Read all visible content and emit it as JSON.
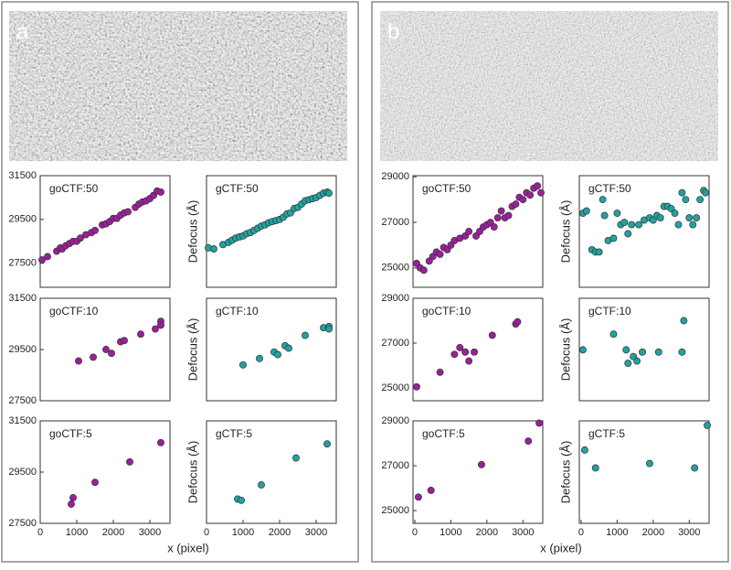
{
  "panel_labels": [
    "a",
    "b"
  ],
  "chart_data": [
    {
      "type": "scatter",
      "title": "goCTF:50",
      "color": "#9b1f9b",
      "xlim": [
        0,
        3550
      ],
      "ylim": [
        26400,
        31500
      ],
      "yticks": [
        27500,
        29500,
        31500
      ],
      "x": [
        50,
        200,
        450,
        550,
        600,
        700,
        800,
        900,
        1000,
        1100,
        1250,
        1400,
        1500,
        1700,
        1800,
        1900,
        2000,
        2100,
        2200,
        2300,
        2400,
        2600,
        2700,
        2800,
        2900,
        3000,
        3100,
        3200,
        3300
      ],
      "values": [
        27650,
        27800,
        28050,
        28200,
        28150,
        28300,
        28400,
        28500,
        28500,
        28650,
        28800,
        28900,
        29000,
        29250,
        29300,
        29400,
        29550,
        29550,
        29700,
        29800,
        29850,
        30050,
        30200,
        30300,
        30350,
        30450,
        30600,
        30800,
        30750
      ]
    },
    {
      "type": "scatter",
      "title": "gCTF:50",
      "ylabel": "Defocus (Å)",
      "color": "#1fa3a0",
      "xlim": [
        0,
        3550
      ],
      "ylim": [
        26400,
        31500
      ],
      "x": [
        50,
        200,
        450,
        600,
        700,
        800,
        900,
        1000,
        1100,
        1200,
        1300,
        1400,
        1500,
        1600,
        1700,
        1800,
        1900,
        2000,
        2100,
        2200,
        2300,
        2400,
        2500,
        2600,
        2700,
        2800,
        2900,
        3000,
        3100,
        3200,
        3300,
        3350
      ],
      "values": [
        28200,
        28150,
        28350,
        28450,
        28550,
        28650,
        28700,
        28750,
        28850,
        28900,
        29000,
        29100,
        29200,
        29250,
        29350,
        29400,
        29450,
        29500,
        29600,
        29750,
        29800,
        30000,
        30050,
        30200,
        30350,
        30400,
        30450,
        30500,
        30600,
        30700,
        30750,
        30700
      ]
    },
    {
      "type": "scatter",
      "title": "goCTF:10",
      "color": "#9b1f9b",
      "xlim": [
        0,
        3550
      ],
      "ylim": [
        27500,
        31500
      ],
      "yticks": [
        27500,
        29500,
        31500
      ],
      "x": [
        1050,
        1450,
        1800,
        1950,
        2200,
        2300,
        2750,
        3150,
        3300,
        3300
      ],
      "values": [
        29050,
        29200,
        29500,
        29350,
        29800,
        29850,
        30100,
        30300,
        30600,
        30450
      ]
    },
    {
      "type": "scatter",
      "title": "gCTF:10",
      "ylabel": "Defocus (Å)",
      "color": "#1fa3a0",
      "xlim": [
        0,
        3550
      ],
      "ylim": [
        27500,
        31500
      ],
      "x": [
        1000,
        1450,
        1850,
        1950,
        2150,
        2250,
        2700,
        3200,
        3350,
        3350
      ],
      "values": [
        28900,
        29150,
        29400,
        29300,
        29650,
        29550,
        30050,
        30350,
        30400,
        30300
      ]
    },
    {
      "type": "scatter",
      "title": "goCTF:5",
      "color": "#9b1f9b",
      "xlim": [
        0,
        3550
      ],
      "ylim": [
        27500,
        31500
      ],
      "yticks": [
        27500,
        29500,
        31500
      ],
      "xticks": [
        0,
        1000,
        2000,
        3000
      ],
      "xlabel": "x (pixel)",
      "x": [
        850,
        900,
        1500,
        2450,
        3300
      ],
      "values": [
        28250,
        28500,
        29100,
        29900,
        30650
      ]
    },
    {
      "type": "scatter",
      "title": "gCTF:5",
      "ylabel": "Defocus (Å)",
      "color": "#1fa3a0",
      "xlim": [
        0,
        3550
      ],
      "ylim": [
        27500,
        31500
      ],
      "xticks": [
        0,
        1000,
        2000,
        3000
      ],
      "x": [
        850,
        950,
        1500,
        2450,
        3300
      ],
      "values": [
        28450,
        28400,
        29000,
        30050,
        30600
      ]
    },
    {
      "type": "scatter",
      "title": "goCTF:50",
      "color": "#9b1f9b",
      "xlim": [
        -50,
        3550
      ],
      "ylim": [
        24150,
        29050
      ],
      "yticks": [
        25000,
        27000,
        29000
      ],
      "x": [
        50,
        150,
        250,
        400,
        500,
        600,
        700,
        800,
        900,
        1000,
        1100,
        1250,
        1400,
        1500,
        1700,
        1800,
        1900,
        2000,
        2100,
        2200,
        2300,
        2400,
        2500,
        2600,
        2700,
        2800,
        2900,
        3000,
        3100,
        3200,
        3300,
        3400,
        3500
      ],
      "values": [
        25200,
        25000,
        24900,
        25300,
        25500,
        25700,
        25600,
        25900,
        25800,
        26000,
        26200,
        26300,
        26400,
        26600,
        26400,
        26600,
        26800,
        26900,
        27000,
        26800,
        27200,
        27500,
        27200,
        27300,
        27700,
        27800,
        28100,
        28000,
        28300,
        28200,
        28500,
        28600,
        28300
      ]
    },
    {
      "type": "scatter",
      "title": "gCTF:50",
      "ylabel": "Defocus (Å)",
      "color": "#1fa3a0",
      "xlim": [
        -50,
        3550
      ],
      "ylim": [
        24150,
        29050
      ],
      "x": [
        50,
        150,
        300,
        400,
        500,
        600,
        650,
        750,
        900,
        1000,
        1100,
        1200,
        1300,
        1400,
        1600,
        1750,
        1900,
        2000,
        2100,
        2200,
        2300,
        2400,
        2500,
        2600,
        2700,
        2800,
        2900,
        3000,
        3100,
        3200,
        3300,
        3400,
        3450
      ],
      "values": [
        27400,
        27500,
        25800,
        25700,
        25700,
        28000,
        27300,
        26200,
        26300,
        27400,
        26900,
        27000,
        26500,
        26900,
        26900,
        27100,
        27200,
        27100,
        27300,
        27200,
        27700,
        27700,
        27600,
        27400,
        26900,
        28300,
        28000,
        27200,
        26900,
        27200,
        28000,
        28400,
        28300
      ]
    },
    {
      "type": "scatter",
      "title": "goCTF:10",
      "color": "#9b1f9b",
      "xlim": [
        -50,
        3550
      ],
      "ylim": [
        24430,
        29000
      ],
      "yticks": [
        25000,
        27000,
        29000
      ],
      "x": [
        50,
        700,
        1100,
        1250,
        1400,
        1500,
        1650,
        2150,
        2800,
        2850
      ],
      "values": [
        25050,
        25700,
        26500,
        26800,
        26600,
        26200,
        26600,
        27350,
        27850,
        27950
      ]
    },
    {
      "type": "scatter",
      "title": "gCTF:10",
      "ylabel": "Defocus (Å)",
      "color": "#1fa3a0",
      "xlim": [
        -50,
        3550
      ],
      "ylim": [
        24430,
        29000
      ],
      "x": [
        50,
        900,
        1250,
        1300,
        1450,
        1550,
        1700,
        2150,
        2800,
        2850
      ],
      "values": [
        26700,
        27400,
        26700,
        26100,
        26400,
        26200,
        26600,
        26600,
        26600,
        28000
      ]
    },
    {
      "type": "scatter",
      "title": "goCTF:5",
      "color": "#9b1f9b",
      "xlim": [
        -50,
        3550
      ],
      "ylim": [
        24430,
        29000
      ],
      "yticks": [
        25000,
        27000,
        29000
      ],
      "xticks": [
        0,
        1000,
        2000,
        3000
      ],
      "xlabel": "x (pixel)",
      "x": [
        100,
        450,
        1850,
        3150,
        3450
      ],
      "values": [
        25600,
        25900,
        27050,
        28100,
        28900
      ]
    },
    {
      "type": "scatter",
      "title": "gCTF:5",
      "ylabel": "Defocus (Å)",
      "color": "#1fa3a0",
      "xlim": [
        -50,
        3550
      ],
      "ylim": [
        24430,
        29000
      ],
      "xticks": [
        0,
        1000,
        2000,
        3000
      ],
      "x": [
        100,
        400,
        1900,
        3150,
        3500
      ],
      "values": [
        27700,
        26900,
        27100,
        26900,
        28800
      ]
    }
  ]
}
